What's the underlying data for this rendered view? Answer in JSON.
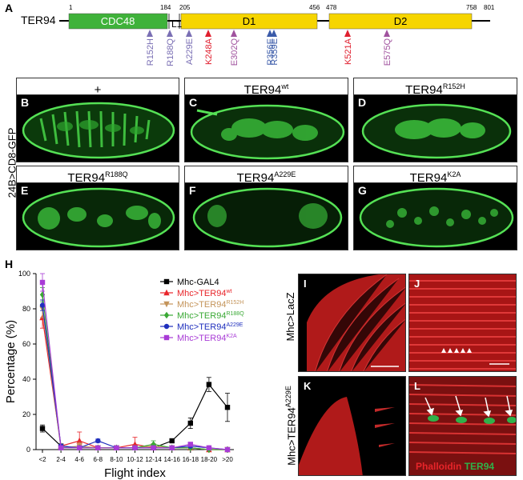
{
  "panel_a": {
    "letter": "A",
    "protein": "TER94",
    "positions": [
      "1",
      "184",
      "205",
      "456",
      "478",
      "758",
      "801"
    ],
    "l1": "L1",
    "domains": {
      "cdc48": "CDC48",
      "d1": "D1",
      "d2": "D2"
    },
    "mutations": [
      {
        "label": "R152H",
        "color": "#7a6fb4"
      },
      {
        "label": "R188Q",
        "color": "#7a6fb4"
      },
      {
        "label": "A229E",
        "color": "#7a6fb4"
      },
      {
        "label": "K248A",
        "color": "#e0202f"
      },
      {
        "label": "E302Q",
        "color": "#a0529e"
      },
      {
        "label": "R356E",
        "color": "#3b5ba9"
      },
      {
        "label": "R359E",
        "color": "#3b5ba9"
      },
      {
        "label": "K521A",
        "color": "#e0202f"
      },
      {
        "label": "E575Q",
        "color": "#a0529e"
      }
    ],
    "colors": {
      "cdc48": "#3fb23a",
      "d": "#f6d500"
    }
  },
  "embryo_panels": {
    "side_label": "24B>CD8-GFP",
    "panels": [
      {
        "letter": "B",
        "base": "+",
        "sup": ""
      },
      {
        "letter": "C",
        "base": "TER94",
        "sup": "wt"
      },
      {
        "letter": "D",
        "base": "TER94",
        "sup": "R152H"
      },
      {
        "letter": "E",
        "base": "TER94",
        "sup": "R188Q"
      },
      {
        "letter": "F",
        "base": "TER94",
        "sup": "A229E"
      },
      {
        "letter": "G",
        "base": "TER94",
        "sup": "K2A"
      }
    ]
  },
  "chart_panel": {
    "letter": "H"
  },
  "chart_data": {
    "type": "line",
    "ylabel": "Percentage (%)",
    "xlabel": "Flight index",
    "ylim": [
      0,
      100
    ],
    "yticks": [
      "0",
      "20",
      "40",
      "60",
      "80",
      "100"
    ],
    "categories": [
      "<2",
      "2-4",
      "4-6",
      "6-8",
      "8-10",
      "10-12",
      "12-14",
      "14-16",
      "16-18",
      "18-20",
      ">20"
    ],
    "series": [
      {
        "name": "Mhc-GAL4",
        "sup": "",
        "color": "#000000",
        "marker": "square",
        "values": [
          12,
          2,
          1,
          1,
          1,
          1,
          1,
          5,
          15,
          37,
          24
        ],
        "errors": [
          2,
          1,
          1,
          1,
          1,
          1,
          1,
          1,
          3,
          4,
          8
        ]
      },
      {
        "name": "Mhc>TER94",
        "sup": "wt",
        "color": "#e8252a",
        "marker": "triangle-up",
        "values": [
          75,
          2,
          5,
          1,
          1,
          3,
          1,
          1,
          1,
          0,
          0
        ],
        "errors": [
          6,
          1,
          5,
          1,
          1,
          4,
          1,
          1,
          1,
          0,
          0
        ]
      },
      {
        "name": "Mhc>TER94",
        "sup": "R152H",
        "color": "#c4945a",
        "marker": "triangle-down",
        "values": [
          80,
          1,
          2,
          1,
          1,
          1,
          2,
          1,
          1,
          0,
          0
        ],
        "errors": [
          5,
          1,
          2,
          1,
          1,
          1,
          1,
          1,
          1,
          0,
          0
        ]
      },
      {
        "name": "Mhc>TER94",
        "sup": "R188Q",
        "color": "#3aa935",
        "marker": "diamond",
        "values": [
          88,
          1,
          1,
          1,
          1,
          1,
          3,
          1,
          1,
          0,
          0
        ],
        "errors": [
          4,
          1,
          1,
          1,
          1,
          1,
          2,
          1,
          1,
          0,
          0
        ]
      },
      {
        "name": "Mhc>TER94",
        "sup": "A229E",
        "color": "#1f2fbd",
        "marker": "circle",
        "values": [
          82,
          2,
          1,
          5,
          1,
          1,
          1,
          1,
          2,
          1,
          0
        ],
        "errors": [
          3,
          1,
          1,
          1,
          1,
          1,
          1,
          1,
          1,
          1,
          0
        ]
      },
      {
        "name": "Mhc>TER94",
        "sup": "K2A",
        "color": "#a83bd6",
        "marker": "square",
        "values": [
          95,
          1,
          1,
          1,
          1,
          1,
          1,
          1,
          3,
          1,
          0
        ],
        "errors": [
          5,
          1,
          1,
          1,
          1,
          1,
          1,
          1,
          1,
          1,
          0
        ]
      }
    ]
  },
  "micrographs": {
    "top_label": "Mhc>LacZ",
    "bottom_label_base": "Mhc>TER94",
    "bottom_label_sup": "A229E",
    "panels": [
      "I",
      "J",
      "K",
      "L"
    ],
    "stain_phalloidin": "Phalloidin",
    "stain_ter94": "TER94",
    "phalloidin_color": "#e8252a",
    "ter94_color": "#2fb24a"
  }
}
